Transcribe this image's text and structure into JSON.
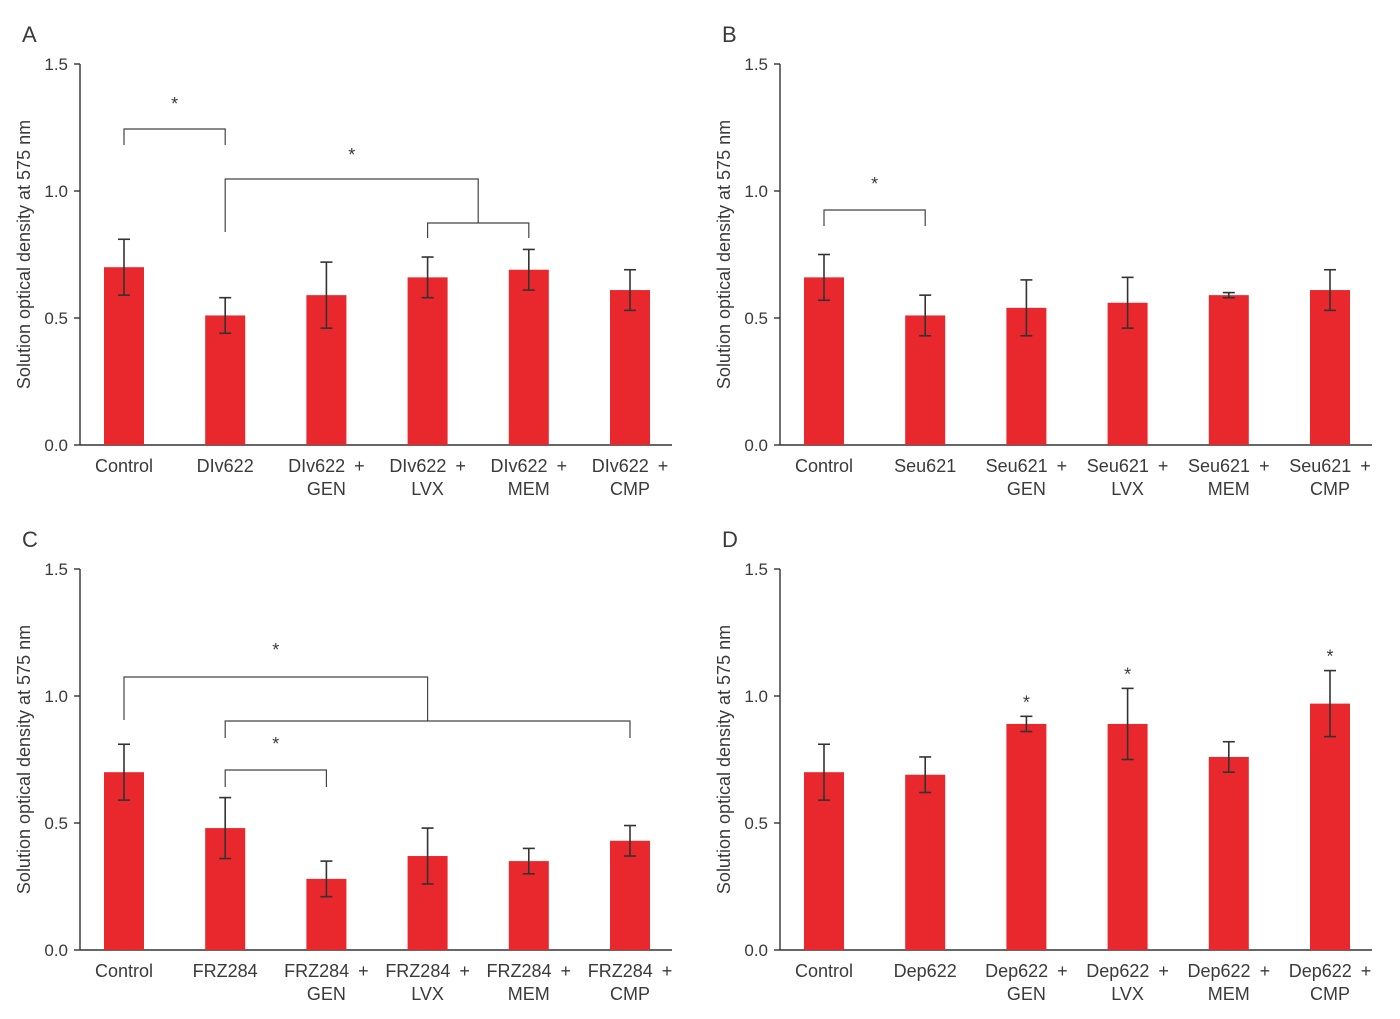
{
  "chart_data": [
    {
      "panel": "A",
      "type": "bar",
      "ylabel": "Solution optical density at 575 nm",
      "ylim": [
        0,
        1.5
      ],
      "yticks": [
        "0.0",
        "0.5",
        "1.0",
        "1.5"
      ],
      "categories": [
        [
          "Control"
        ],
        [
          "DIv622"
        ],
        [
          "DIv622 +",
          "GEN"
        ],
        [
          "DIv622 +",
          "LVX"
        ],
        [
          "DIv622 +",
          "MEM"
        ],
        [
          "DIv622 +",
          "CMP"
        ]
      ],
      "values": [
        0.7,
        0.51,
        0.59,
        0.66,
        0.69,
        0.61
      ],
      "errors": [
        0.11,
        0.07,
        0.13,
        0.08,
        0.08,
        0.08
      ],
      "brackets": [
        {
          "from": 0,
          "to": 1,
          "label": "*"
        },
        {
          "from": 1,
          "to": [
            3,
            4
          ],
          "label": "*"
        }
      ],
      "bar_labels": []
    },
    {
      "panel": "B",
      "type": "bar",
      "ylabel": "Solution optical density at 575 nm",
      "ylim": [
        0,
        1.5
      ],
      "yticks": [
        "0.0",
        "0.5",
        "1.0",
        "1.5"
      ],
      "categories": [
        [
          "Control"
        ],
        [
          "Seu621"
        ],
        [
          "Seu621 +",
          "GEN"
        ],
        [
          "Seu621 +",
          "LVX"
        ],
        [
          "Seu621 +",
          "MEM"
        ],
        [
          "Seu621 +",
          "CMP"
        ]
      ],
      "values": [
        0.66,
        0.51,
        0.54,
        0.56,
        0.59,
        0.61
      ],
      "errors": [
        0.09,
        0.08,
        0.11,
        0.1,
        0.01,
        0.08
      ],
      "brackets": [
        {
          "from": 0,
          "to": 1,
          "label": "*"
        }
      ],
      "bar_labels": []
    },
    {
      "panel": "C",
      "type": "bar",
      "ylabel": "Solution optical density at 575 nm",
      "ylim": [
        0,
        1.5
      ],
      "yticks": [
        "0.0",
        "0.5",
        "1.0",
        "1.5"
      ],
      "categories": [
        [
          "Control"
        ],
        [
          "FRZ284"
        ],
        [
          "FRZ284 +",
          "GEN"
        ],
        [
          "FRZ284 +",
          "LVX"
        ],
        [
          "FRZ284 +",
          "MEM"
        ],
        [
          "FRZ284 +",
          "CMP"
        ]
      ],
      "values": [
        0.7,
        0.48,
        0.28,
        0.37,
        0.35,
        0.43
      ],
      "errors": [
        0.11,
        0.12,
        0.07,
        0.11,
        0.05,
        0.06
      ],
      "brackets": [
        {
          "from": 0,
          "to": [
            1,
            5
          ],
          "label": "*"
        },
        {
          "from": 1,
          "to": 2,
          "label": "*"
        }
      ],
      "bar_labels": []
    },
    {
      "panel": "D",
      "type": "bar",
      "ylabel": "Solution optical density at 575 nm",
      "ylim": [
        0,
        1.5
      ],
      "yticks": [
        "0.0",
        "0.5",
        "1.0",
        "1.5"
      ],
      "categories": [
        [
          "Control"
        ],
        [
          "Dep622"
        ],
        [
          "Dep622 +",
          "GEN"
        ],
        [
          "Dep622 +",
          "LVX"
        ],
        [
          "Dep622 +",
          "MEM"
        ],
        [
          "Dep622 +",
          "CMP"
        ]
      ],
      "values": [
        0.7,
        0.69,
        0.89,
        0.89,
        0.76,
        0.97
      ],
      "errors": [
        0.11,
        0.07,
        0.03,
        0.14,
        0.06,
        0.13
      ],
      "brackets": [],
      "bar_labels": [
        {
          "index": 2,
          "label": "*"
        },
        {
          "index": 3,
          "label": "*"
        },
        {
          "index": 5,
          "label": "*"
        }
      ]
    }
  ],
  "bar_color": "#e8282d"
}
